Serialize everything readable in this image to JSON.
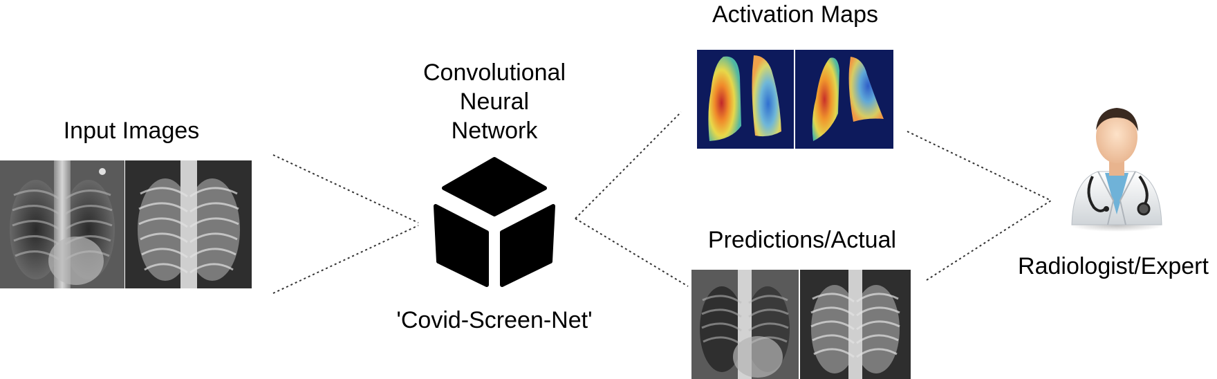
{
  "labels": {
    "input_images": "Input Images",
    "cnn_line1": "Convolutional",
    "cnn_line2": "Neural",
    "cnn_line3": "Network",
    "model_name": "'Covid-Screen-Net'",
    "activation_maps": "Activation Maps",
    "predictions_actual": "Predictions/Actual",
    "radiologist_expert": "Radiologist/Expert"
  },
  "icons": {
    "cnn": "cube-icon",
    "expert": "doctor-avatar-icon"
  },
  "colors": {
    "text": "#000000",
    "cube": "#000000",
    "activation_background": "#0d1a5c",
    "connector": "#333333"
  }
}
